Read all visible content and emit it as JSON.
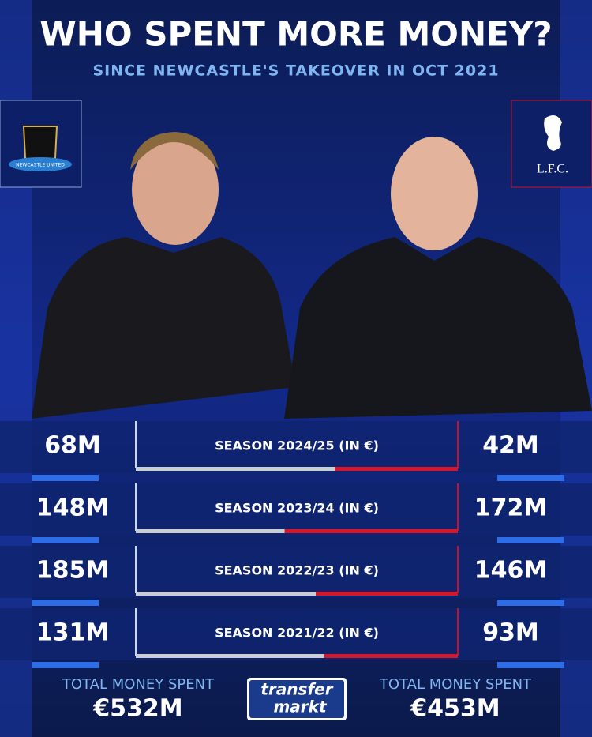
{
  "header": {
    "title": "WHO SPENT MORE MONEY?",
    "subtitle": "SINCE NEWCASTLE'S TAKEOVER IN OCT 2021"
  },
  "crests": {
    "left": "NEWCASTLE UNITED",
    "right": "L.F.C."
  },
  "rows": [
    {
      "season": "SEASON 2024/25 (IN €)",
      "left": {
        "value": 68,
        "label": "68M"
      },
      "right": {
        "value": 42,
        "label": "42M"
      }
    },
    {
      "season": "SEASON 2023/24 (IN €)",
      "left": {
        "value": 148,
        "label": "148M"
      },
      "right": {
        "value": 172,
        "label": "172M"
      }
    },
    {
      "season": "SEASON 2022/23 (IN €)",
      "left": {
        "value": 185,
        "label": "185M"
      },
      "right": {
        "value": 146,
        "label": "146M"
      }
    },
    {
      "season": "SEASON 2021/22 (IN €)",
      "left": {
        "value": 131,
        "label": "131M"
      },
      "right": {
        "value": 93,
        "label": "93M"
      }
    }
  ],
  "totals": {
    "left": {
      "caption": "TOTAL MONEY SPENT",
      "amount": "€532M"
    },
    "right": {
      "caption": "TOTAL MONEY SPENT",
      "amount": "€453M"
    }
  },
  "logo": {
    "line1": "transfer",
    "line2": "markt"
  }
}
